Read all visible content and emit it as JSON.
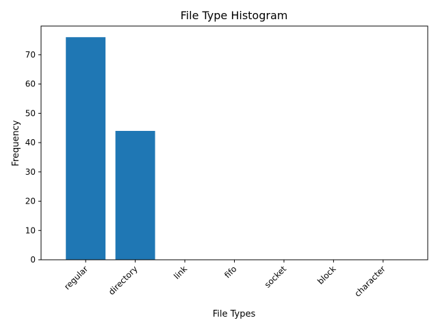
{
  "chart_data": {
    "type": "bar",
    "title": "File Type Histogram",
    "xlabel": "File Types",
    "ylabel": "Frequency",
    "categories": [
      "regular",
      "directory",
      "link",
      "fifo",
      "socket",
      "block",
      "character"
    ],
    "values": [
      76,
      44,
      0,
      0,
      0,
      0,
      0
    ],
    "ylim": [
      0,
      79.8
    ],
    "yticks": [
      0,
      10,
      20,
      30,
      40,
      50,
      60,
      70
    ],
    "x_tick_rotation_deg": 45,
    "bar_color": "#1f77b4",
    "grid": false,
    "legend": "none"
  }
}
